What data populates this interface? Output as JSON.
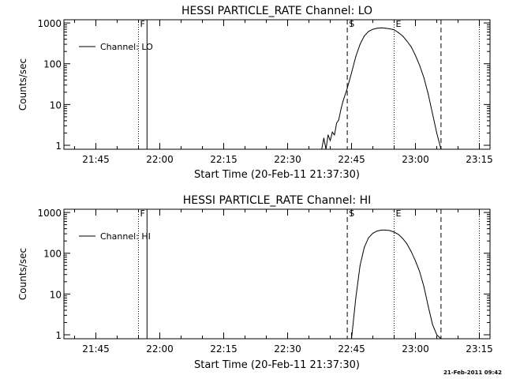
{
  "chart_data": [
    {
      "type": "line",
      "title": "HESSI PARTICLE_RATE Channel: LO",
      "xlabel": "Start Time (20-Feb-11 21:37:30)",
      "ylabel": "Counts/sec",
      "y_scale": "log",
      "ylim": [
        0.8,
        1200
      ],
      "xlim": [
        "21:37:30",
        "23:17:30"
      ],
      "x_ticks": [
        "21:45",
        "22:00",
        "22:15",
        "22:30",
        "22:45",
        "23:00",
        "23:15"
      ],
      "y_ticks": [
        "1",
        "10",
        "100",
        "1000"
      ],
      "legend": {
        "label": "Channel: LO",
        "placement": "top-left"
      },
      "markers": [
        {
          "label": "F",
          "time": "21:55",
          "style": "dotted"
        },
        {
          "label": "",
          "time": "21:57",
          "style": "solid"
        },
        {
          "label": "S",
          "time": "22:44",
          "style": "dashed"
        },
        {
          "label": "E",
          "time": "22:55",
          "style": "dotted"
        },
        {
          "label": "",
          "time": "23:06",
          "style": "dashed"
        },
        {
          "label": "",
          "time": "23:15",
          "style": "dotted"
        }
      ],
      "series": [
        {
          "name": "Channel: LO",
          "x": [
            "22:38",
            "22:38:30",
            "22:39",
            "22:39:30",
            "22:40",
            "22:40:30",
            "22:41",
            "22:41:30",
            "22:42",
            "22:42:30",
            "22:43",
            "22:44",
            "22:45",
            "22:46",
            "22:47",
            "22:48",
            "22:49",
            "22:50",
            "22:51",
            "22:52",
            "22:53",
            "22:54",
            "22:55",
            "22:56",
            "22:57",
            "22:58",
            "22:59",
            "23:00",
            "23:01",
            "23:02",
            "23:03",
            "23:04",
            "23:05",
            "23:06"
          ],
          "y": [
            0.8,
            1.5,
            0.8,
            1.8,
            1.3,
            2.1,
            1.8,
            3.5,
            4.2,
            7.5,
            12,
            25,
            60,
            150,
            300,
            480,
            620,
            700,
            740,
            760,
            740,
            720,
            680,
            580,
            480,
            360,
            260,
            160,
            90,
            45,
            18,
            6,
            2,
            0.8
          ]
        }
      ]
    },
    {
      "type": "line",
      "title": "HESSI PARTICLE_RATE Channel: HI",
      "xlabel": "Start Time (20-Feb-11 21:37:30)",
      "ylabel": "Counts/sec",
      "y_scale": "log",
      "ylim": [
        0.8,
        1200
      ],
      "xlim": [
        "21:37:30",
        "23:17:30"
      ],
      "x_ticks": [
        "21:45",
        "22:00",
        "22:15",
        "22:30",
        "22:45",
        "23:00",
        "23:15"
      ],
      "y_ticks": [
        "1",
        "10",
        "100",
        "1000"
      ],
      "legend": {
        "label": "Channel: HI",
        "placement": "top-left"
      },
      "markers": [
        {
          "label": "F",
          "time": "21:55",
          "style": "dotted"
        },
        {
          "label": "",
          "time": "21:57",
          "style": "solid"
        },
        {
          "label": "S",
          "time": "22:44",
          "style": "dashed"
        },
        {
          "label": "E",
          "time": "22:55",
          "style": "dotted"
        },
        {
          "label": "",
          "time": "23:06",
          "style": "dashed"
        },
        {
          "label": "",
          "time": "23:15",
          "style": "dotted"
        }
      ],
      "series": [
        {
          "name": "Channel: HI",
          "x": [
            "22:45",
            "22:46",
            "22:47",
            "22:48",
            "22:49",
            "22:50",
            "22:51",
            "22:52",
            "22:53",
            "22:54",
            "22:55",
            "22:56",
            "22:57",
            "22:58",
            "22:59",
            "23:00",
            "23:01",
            "23:02",
            "23:03",
            "23:04",
            "23:05",
            "23:06"
          ],
          "y": [
            0.8,
            8,
            50,
            140,
            240,
            310,
            350,
            370,
            370,
            360,
            330,
            290,
            230,
            170,
            110,
            65,
            35,
            15,
            5,
            1.8,
            1,
            0.8
          ]
        }
      ]
    }
  ],
  "footer": {
    "timestamp": "21-Feb-2011 09:42"
  }
}
